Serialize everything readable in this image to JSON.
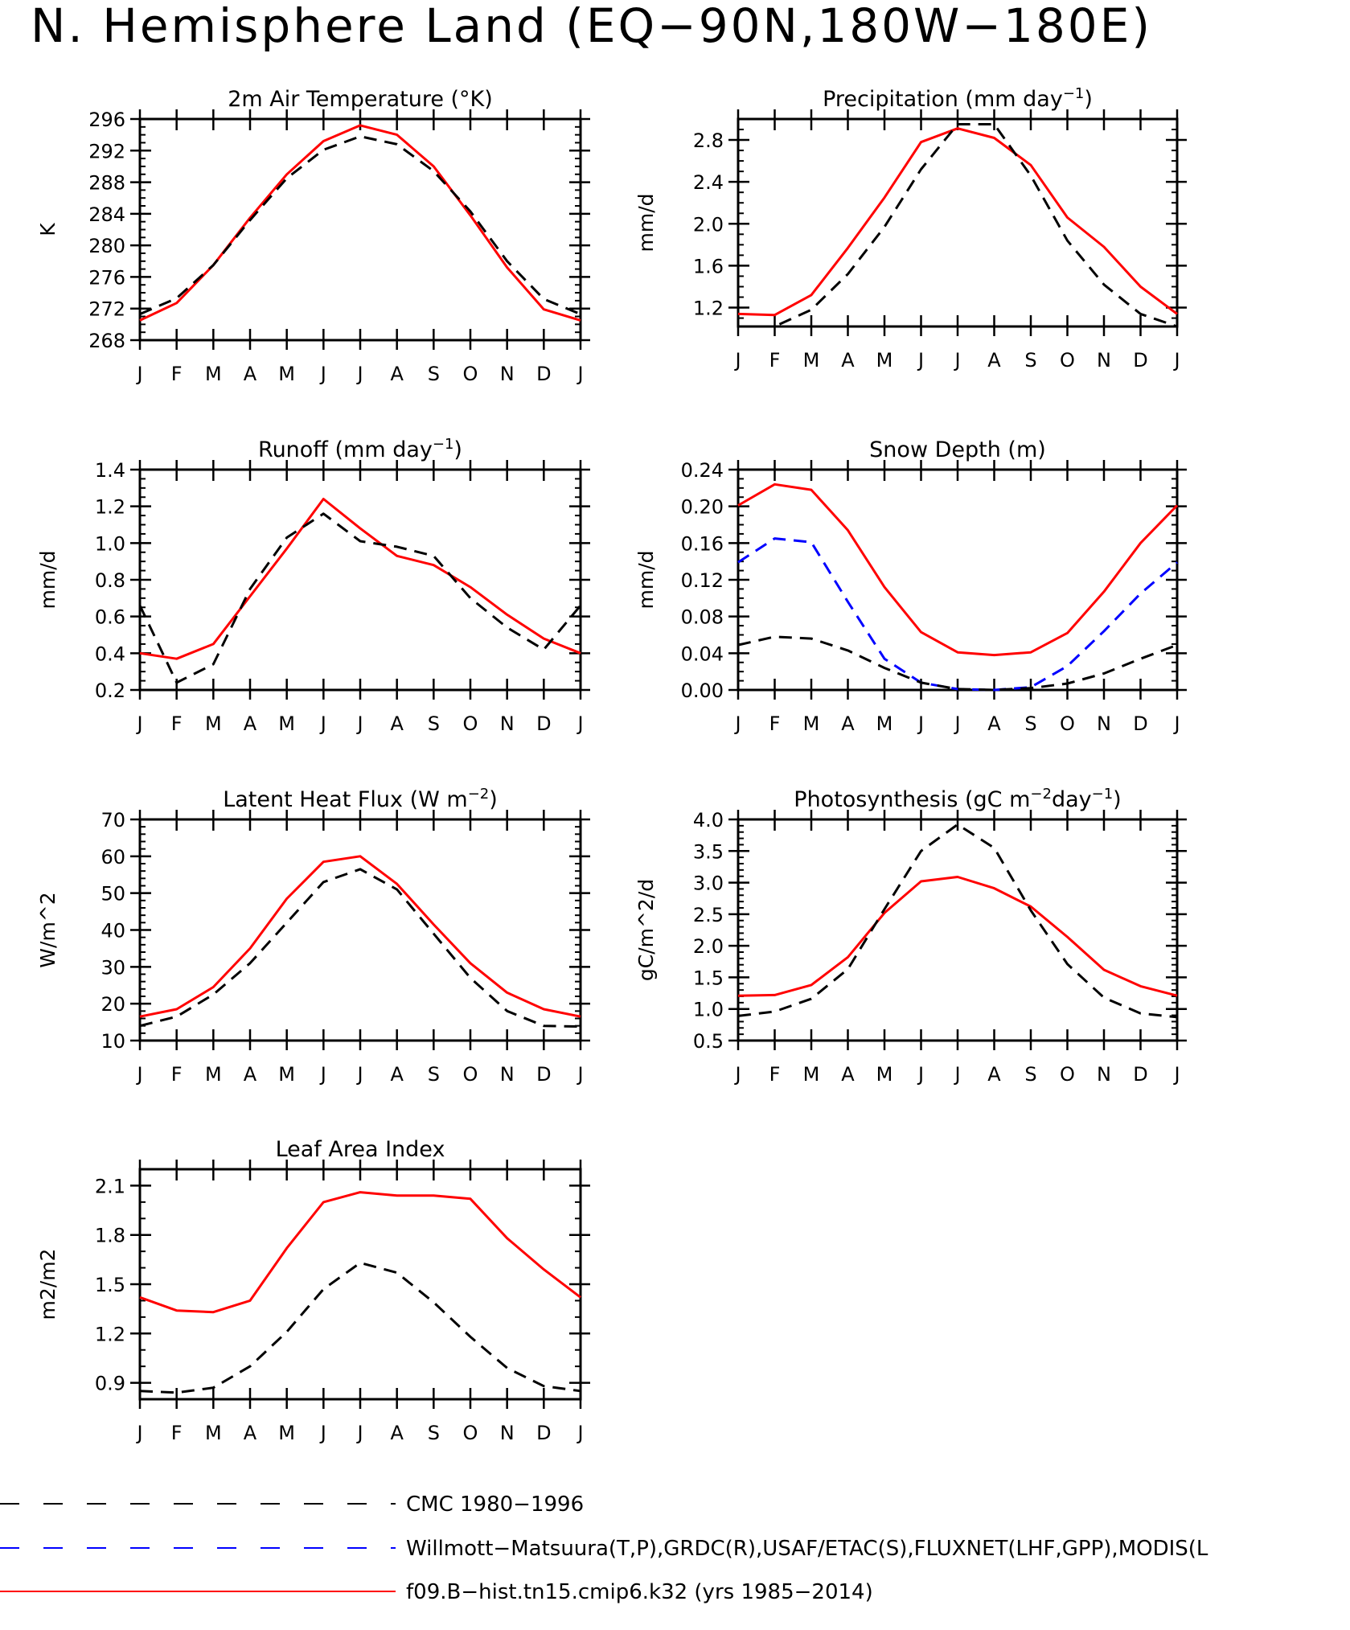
{
  "page": {
    "title": "N. Hemisphere Land (EQ−90N,180W−180E)"
  },
  "legend": [
    {
      "label": "CMC 1980−1996",
      "color": "#000000",
      "dash": "dashed-long"
    },
    {
      "label": "Willmott−Matsuura(T,P),GRDC(R),USAF/ETAC(S),FLUXNET(LHF,GPP),MODIS(L",
      "color": "#0000ff",
      "dash": "dashed-long"
    },
    {
      "label": "f09.B−hist.tn15.cmip6.k32 (yrs 1985−2014)",
      "color": "#ff0000",
      "dash": "solid"
    }
  ],
  "series_styles": {
    "model": {
      "color": "#ff0000",
      "dash": "solid"
    },
    "obs_black": {
      "color": "#000000",
      "dash": "dashed"
    },
    "obs_blue": {
      "color": "#0000ff",
      "dash": "dashed"
    }
  },
  "chart_data": [
    {
      "type": "line",
      "title": "2m Air Temperature (°K)",
      "ylabel": "K",
      "x": [
        "J",
        "F",
        "M",
        "A",
        "M",
        "J",
        "J",
        "A",
        "S",
        "O",
        "N",
        "D",
        "J"
      ],
      "ylim": [
        268,
        296
      ],
      "yticks": [
        268,
        272,
        276,
        280,
        284,
        288,
        292,
        296
      ],
      "ytick_labels": [
        "268",
        "272",
        "276",
        "280",
        "284",
        "288",
        "292",
        "296"
      ],
      "yminor": 1,
      "series": [
        {
          "style": "model",
          "values": [
            270.5,
            272.7,
            277.5,
            283.5,
            289.0,
            293.2,
            295.2,
            294.0,
            290.0,
            283.8,
            277.2,
            271.9,
            270.5
          ]
        },
        {
          "style": "obs_black",
          "values": [
            271.3,
            273.3,
            277.5,
            283.2,
            288.5,
            292.1,
            293.8,
            292.8,
            289.4,
            284.3,
            278.0,
            273.2,
            271.3
          ]
        }
      ]
    },
    {
      "type": "line",
      "title": "Precipitation (mm day",
      "title_sup": "−1",
      "title_end": ")",
      "ylabel": "mm/d",
      "x": [
        "J",
        "F",
        "M",
        "A",
        "M",
        "J",
        "J",
        "A",
        "S",
        "O",
        "N",
        "D",
        "J"
      ],
      "ylim": [
        1.02,
        3.0
      ],
      "yticks": [
        1.2,
        1.6,
        2.0,
        2.4,
        2.8
      ],
      "ytick_labels": [
        "1.2",
        "1.6",
        "2.0",
        "2.4",
        "2.8"
      ],
      "yminor": 0.1,
      "series": [
        {
          "style": "model",
          "values": [
            1.14,
            1.13,
            1.32,
            1.77,
            2.25,
            2.78,
            2.91,
            2.82,
            2.56,
            2.06,
            1.78,
            1.4,
            1.14
          ]
        },
        {
          "style": "obs_black",
          "values": [
            1.02,
            1.02,
            1.18,
            1.52,
            1.97,
            2.52,
            2.95,
            2.95,
            2.46,
            1.84,
            1.42,
            1.14,
            1.02
          ]
        }
      ]
    },
    {
      "type": "line",
      "title": "Runoff (mm day",
      "title_sup": "−1",
      "title_end": ")",
      "ylabel": "mm/d",
      "x": [
        "J",
        "F",
        "M",
        "A",
        "M",
        "J",
        "J",
        "A",
        "S",
        "O",
        "N",
        "D",
        "J"
      ],
      "ylim": [
        0.2,
        1.4
      ],
      "yticks": [
        0.2,
        0.4,
        0.6,
        0.8,
        1.0,
        1.2,
        1.4
      ],
      "ytick_labels": [
        "0.2",
        "0.4",
        "0.6",
        "0.8",
        "1.0",
        "1.2",
        "1.4"
      ],
      "yminor": 0.05,
      "series": [
        {
          "style": "model",
          "values": [
            0.4,
            0.37,
            0.45,
            0.71,
            0.97,
            1.24,
            1.08,
            0.93,
            0.88,
            0.76,
            0.61,
            0.48,
            0.4
          ]
        },
        {
          "style": "obs_black",
          "values": [
            0.66,
            0.24,
            0.34,
            0.75,
            1.03,
            1.16,
            1.01,
            0.98,
            0.93,
            0.7,
            0.54,
            0.42,
            0.66
          ]
        }
      ]
    },
    {
      "type": "line",
      "title": "Snow Depth (m)",
      "ylabel": "mm/d",
      "x": [
        "J",
        "F",
        "M",
        "A",
        "M",
        "J",
        "J",
        "A",
        "S",
        "O",
        "N",
        "D",
        "J"
      ],
      "ylim": [
        0.0,
        0.24
      ],
      "yticks": [
        0.0,
        0.04,
        0.08,
        0.12,
        0.16,
        0.2,
        0.24
      ],
      "ytick_labels": [
        "0.00",
        "0.04",
        "0.08",
        "0.12",
        "0.16",
        "0.20",
        "0.24"
      ],
      "yminor": 0.01,
      "series": [
        {
          "style": "model",
          "values": [
            0.201,
            0.224,
            0.218,
            0.174,
            0.112,
            0.063,
            0.041,
            0.038,
            0.041,
            0.062,
            0.107,
            0.16,
            0.201
          ]
        },
        {
          "style": "obs_blue",
          "values": [
            0.139,
            0.165,
            0.161,
            0.096,
            0.034,
            0.008,
            0.001,
            0.0,
            0.003,
            0.026,
            0.064,
            0.105,
            0.139
          ]
        },
        {
          "style": "obs_black",
          "values": [
            0.049,
            0.058,
            0.056,
            0.043,
            0.024,
            0.008,
            0.001,
            0.0,
            0.002,
            0.007,
            0.018,
            0.034,
            0.049
          ]
        }
      ]
    },
    {
      "type": "line",
      "title": "Latent Heat Flux (W m",
      "title_sup": "−2",
      "title_end": ")",
      "ylabel": "W/m^2",
      "x": [
        "J",
        "F",
        "M",
        "A",
        "M",
        "J",
        "J",
        "A",
        "S",
        "O",
        "N",
        "D",
        "J"
      ],
      "ylim": [
        10,
        70
      ],
      "yticks": [
        10,
        20,
        30,
        40,
        50,
        60,
        70
      ],
      "ytick_labels": [
        "10",
        "20",
        "30",
        "40",
        "50",
        "60",
        "70"
      ],
      "yminor": 2,
      "series": [
        {
          "style": "model",
          "values": [
            16.5,
            18.5,
            24.5,
            35.0,
            48.5,
            58.5,
            60.0,
            52.5,
            41.5,
            31.0,
            23.0,
            18.5,
            16.5
          ]
        },
        {
          "style": "obs_black",
          "values": [
            14.0,
            16.5,
            22.5,
            31.0,
            42.0,
            53.0,
            56.5,
            51.0,
            39.0,
            27.0,
            18.0,
            14.0,
            13.8
          ]
        }
      ]
    },
    {
      "type": "line",
      "title": "Photosynthesis (gC m",
      "title_sup": "−2",
      "title_mid": "day",
      "title_sup2": "−1",
      "title_end": ")",
      "ylabel": "gC/m^2/d",
      "x": [
        "J",
        "F",
        "M",
        "A",
        "M",
        "J",
        "J",
        "A",
        "S",
        "O",
        "N",
        "D",
        "J"
      ],
      "ylim": [
        0.5,
        4.0
      ],
      "yticks": [
        0.5,
        1.0,
        1.5,
        2.0,
        2.5,
        3.0,
        3.5,
        4.0
      ],
      "ytick_labels": [
        "0.5",
        "1.0",
        "1.5",
        "2.0",
        "2.5",
        "3.0",
        "3.5",
        "4.0"
      ],
      "yminor": 0.1,
      "series": [
        {
          "style": "model",
          "values": [
            1.21,
            1.22,
            1.38,
            1.82,
            2.52,
            3.02,
            3.09,
            2.91,
            2.62,
            2.14,
            1.62,
            1.36,
            1.21
          ]
        },
        {
          "style": "obs_black",
          "values": [
            0.89,
            0.96,
            1.16,
            1.63,
            2.58,
            3.5,
            3.92,
            3.55,
            2.56,
            1.71,
            1.18,
            0.93,
            0.87
          ]
        }
      ]
    },
    {
      "type": "line",
      "title": "Leaf Area Index",
      "ylabel": "m2/m2",
      "x": [
        "J",
        "F",
        "M",
        "A",
        "M",
        "J",
        "J",
        "A",
        "S",
        "O",
        "N",
        "D",
        "J"
      ],
      "ylim": [
        0.8,
        2.2
      ],
      "yticks": [
        0.9,
        1.2,
        1.5,
        1.8,
        2.1
      ],
      "ytick_labels": [
        "0.9",
        "1.2",
        "1.5",
        "1.8",
        "2.1"
      ],
      "yminor": 0.1,
      "series": [
        {
          "style": "model",
          "values": [
            1.42,
            1.34,
            1.33,
            1.4,
            1.72,
            2.0,
            2.06,
            2.04,
            2.04,
            2.02,
            1.78,
            1.59,
            1.42
          ]
        },
        {
          "style": "obs_black",
          "values": [
            0.85,
            0.84,
            0.87,
            1.0,
            1.21,
            1.47,
            1.63,
            1.57,
            1.39,
            1.18,
            0.99,
            0.88,
            0.85
          ]
        }
      ]
    }
  ]
}
